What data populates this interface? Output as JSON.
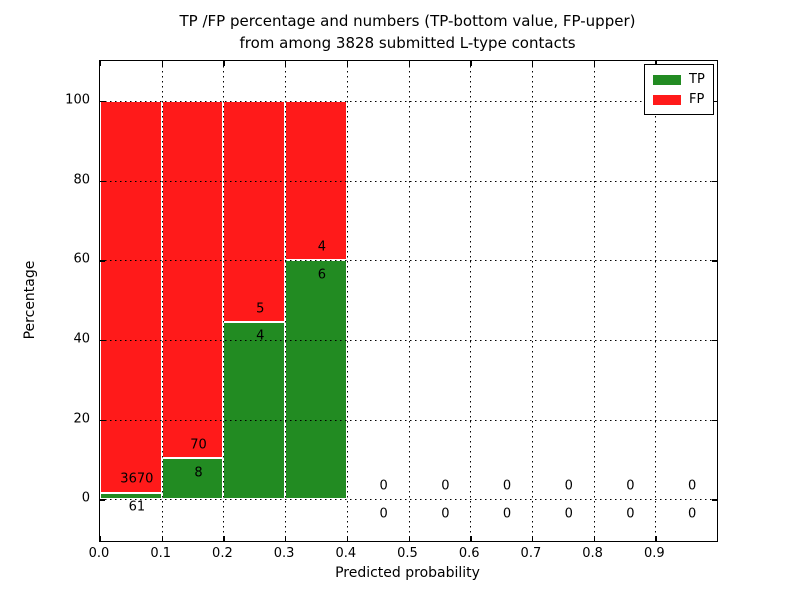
{
  "title": {
    "line1": "TP /FP percentage and numbers (TP-bottom value, FP-upper)",
    "line2": "from among 3828 submitted L-type contacts"
  },
  "chart_data": {
    "type": "bar",
    "subtype": "stacked-percentage-histogram",
    "title": "TP /FP percentage and numbers (TP-bottom value, FP-upper)\nfrom among 3828 submitted L-type contacts",
    "xlabel": "Predicted probability",
    "ylabel": "Percentage",
    "xlim": [
      0.0,
      1.0
    ],
    "ylim": [
      -10.5,
      110.0
    ],
    "xtick_values": [
      0.0,
      0.1,
      0.2,
      0.3,
      0.4,
      0.5,
      0.6,
      0.7,
      0.8,
      0.9
    ],
    "xtick_labels": [
      "0.0",
      "0.1",
      "0.2",
      "0.3",
      "0.4",
      "0.5",
      "0.6",
      "0.7",
      "0.8",
      "0.9"
    ],
    "ytick_values": [
      0,
      20,
      40,
      60,
      80,
      100
    ],
    "ytick_labels": [
      "0",
      "20",
      "40",
      "60",
      "80",
      "100"
    ],
    "grid": true,
    "total_contacts": 3828,
    "colors": {
      "tp": "#228b22",
      "fp": "#ff1a1a",
      "bar_edge": "#ffffff"
    },
    "legend": {
      "position": "upper-right",
      "entries": [
        {
          "label": "TP",
          "color": "#228b22"
        },
        {
          "label": "FP",
          "color": "#ff1a1a"
        }
      ]
    },
    "bins": [
      {
        "x0": 0.0,
        "x1": 0.1,
        "tp": 61,
        "fp": 3670,
        "tp_pct": 1.63,
        "fp_pct": 98.37
      },
      {
        "x0": 0.1,
        "x1": 0.2,
        "tp": 8,
        "fp": 70,
        "tp_pct": 10.26,
        "fp_pct": 89.74
      },
      {
        "x0": 0.2,
        "x1": 0.3,
        "tp": 4,
        "fp": 5,
        "tp_pct": 44.44,
        "fp_pct": 55.56
      },
      {
        "x0": 0.3,
        "x1": 0.4,
        "tp": 6,
        "fp": 4,
        "tp_pct": 60.0,
        "fp_pct": 40.0
      },
      {
        "x0": 0.4,
        "x1": 0.5,
        "tp": 0,
        "fp": 0,
        "tp_pct": 0,
        "fp_pct": 0
      },
      {
        "x0": 0.5,
        "x1": 0.6,
        "tp": 0,
        "fp": 0,
        "tp_pct": 0,
        "fp_pct": 0
      },
      {
        "x0": 0.6,
        "x1": 0.7,
        "tp": 0,
        "fp": 0,
        "tp_pct": 0,
        "fp_pct": 0
      },
      {
        "x0": 0.7,
        "x1": 0.8,
        "tp": 0,
        "fp": 0,
        "tp_pct": 0,
        "fp_pct": 0
      },
      {
        "x0": 0.8,
        "x1": 0.9,
        "tp": 0,
        "fp": 0,
        "tp_pct": 0,
        "fp_pct": 0
      },
      {
        "x0": 0.9,
        "x1": 1.0,
        "tp": 0,
        "fp": 0,
        "tp_pct": 0,
        "fp_pct": 0
      }
    ]
  }
}
